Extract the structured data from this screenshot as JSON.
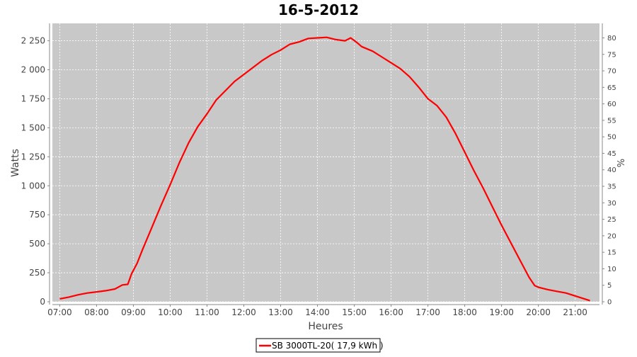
{
  "colors": {
    "plot_bg": "#c8c8c8",
    "grid": "#ffffff",
    "series": "#ff0000",
    "axis": "#888888",
    "text": "#444444",
    "title": "#000000"
  },
  "chart_data": {
    "type": "line",
    "title": "16-5-2012",
    "xlabel": "Heures",
    "ylabel": "Watts",
    "y2label": "%",
    "grid": true,
    "legend_position": "bottom-center",
    "xlim": [
      6.8,
      21.66
    ],
    "ylim": [
      0,
      2400
    ],
    "y2lim": [
      0,
      84.4
    ],
    "x_ticks": [
      {
        "v": 7,
        "label": "07:00"
      },
      {
        "v": 8,
        "label": "08:00"
      },
      {
        "v": 9,
        "label": "09:00"
      },
      {
        "v": 10,
        "label": "10:00"
      },
      {
        "v": 11,
        "label": "11:00"
      },
      {
        "v": 12,
        "label": "12:00"
      },
      {
        "v": 13,
        "label": "13:00"
      },
      {
        "v": 14,
        "label": "14:00"
      },
      {
        "v": 15,
        "label": "15:00"
      },
      {
        "v": 16,
        "label": "16:00"
      },
      {
        "v": 17,
        "label": "17:00"
      },
      {
        "v": 18,
        "label": "18:00"
      },
      {
        "v": 19,
        "label": "19:00"
      },
      {
        "v": 20,
        "label": "20:00"
      },
      {
        "v": 21,
        "label": "21:00"
      }
    ],
    "y_ticks": [
      {
        "v": 0,
        "label": "0"
      },
      {
        "v": 250,
        "label": "250"
      },
      {
        "v": 500,
        "label": "500"
      },
      {
        "v": 750,
        "label": "750"
      },
      {
        "v": 1000,
        "label": "1 000"
      },
      {
        "v": 1250,
        "label": "1 250"
      },
      {
        "v": 1500,
        "label": "1 500"
      },
      {
        "v": 1750,
        "label": "1 750"
      },
      {
        "v": 2000,
        "label": "2 000"
      },
      {
        "v": 2250,
        "label": "2 250"
      }
    ],
    "y2_ticks": [
      {
        "v": 0,
        "label": "0"
      },
      {
        "v": 5,
        "label": "5"
      },
      {
        "v": 10,
        "label": "10"
      },
      {
        "v": 15,
        "label": "15"
      },
      {
        "v": 20,
        "label": "20"
      },
      {
        "v": 25,
        "label": "25"
      },
      {
        "v": 30,
        "label": "30"
      },
      {
        "v": 35,
        "label": "35"
      },
      {
        "v": 40,
        "label": "40"
      },
      {
        "v": 45,
        "label": "45"
      },
      {
        "v": 50,
        "label": "50"
      },
      {
        "v": 55,
        "label": "55"
      },
      {
        "v": 60,
        "label": "60"
      },
      {
        "v": 65,
        "label": "65"
      },
      {
        "v": 70,
        "label": "70"
      },
      {
        "v": 75,
        "label": "75"
      },
      {
        "v": 80,
        "label": "80"
      }
    ],
    "series": [
      {
        "name": "SB 3000TL-20( 17,9 kWh )",
        "color": "#ff0000",
        "points": [
          [
            7.0,
            25
          ],
          [
            7.25,
            40
          ],
          [
            7.5,
            60
          ],
          [
            7.75,
            75
          ],
          [
            8.0,
            85
          ],
          [
            8.25,
            95
          ],
          [
            8.5,
            110
          ],
          [
            8.7,
            145
          ],
          [
            8.85,
            150
          ],
          [
            8.95,
            240
          ],
          [
            9.1,
            330
          ],
          [
            9.25,
            450
          ],
          [
            9.5,
            640
          ],
          [
            9.75,
            830
          ],
          [
            10.0,
            1010
          ],
          [
            10.25,
            1200
          ],
          [
            10.5,
            1370
          ],
          [
            10.75,
            1510
          ],
          [
            11.0,
            1620
          ],
          [
            11.25,
            1740
          ],
          [
            11.5,
            1820
          ],
          [
            11.75,
            1900
          ],
          [
            12.0,
            1960
          ],
          [
            12.25,
            2020
          ],
          [
            12.5,
            2080
          ],
          [
            12.75,
            2130
          ],
          [
            13.0,
            2170
          ],
          [
            13.25,
            2220
          ],
          [
            13.5,
            2240
          ],
          [
            13.75,
            2270
          ],
          [
            14.0,
            2275
          ],
          [
            14.25,
            2280
          ],
          [
            14.5,
            2260
          ],
          [
            14.75,
            2250
          ],
          [
            14.9,
            2275
          ],
          [
            15.05,
            2240
          ],
          [
            15.2,
            2200
          ],
          [
            15.5,
            2160
          ],
          [
            15.75,
            2110
          ],
          [
            16.0,
            2060
          ],
          [
            16.25,
            2010
          ],
          [
            16.5,
            1940
          ],
          [
            16.75,
            1850
          ],
          [
            17.0,
            1750
          ],
          [
            17.25,
            1690
          ],
          [
            17.5,
            1590
          ],
          [
            17.75,
            1450
          ],
          [
            18.0,
            1290
          ],
          [
            18.25,
            1130
          ],
          [
            18.5,
            980
          ],
          [
            18.75,
            820
          ],
          [
            19.0,
            660
          ],
          [
            19.25,
            510
          ],
          [
            19.5,
            360
          ],
          [
            19.75,
            210
          ],
          [
            19.9,
            140
          ],
          [
            20.0,
            125
          ],
          [
            20.25,
            105
          ],
          [
            20.5,
            90
          ],
          [
            20.75,
            75
          ],
          [
            21.0,
            50
          ],
          [
            21.25,
            25
          ],
          [
            21.4,
            10
          ]
        ]
      }
    ]
  }
}
